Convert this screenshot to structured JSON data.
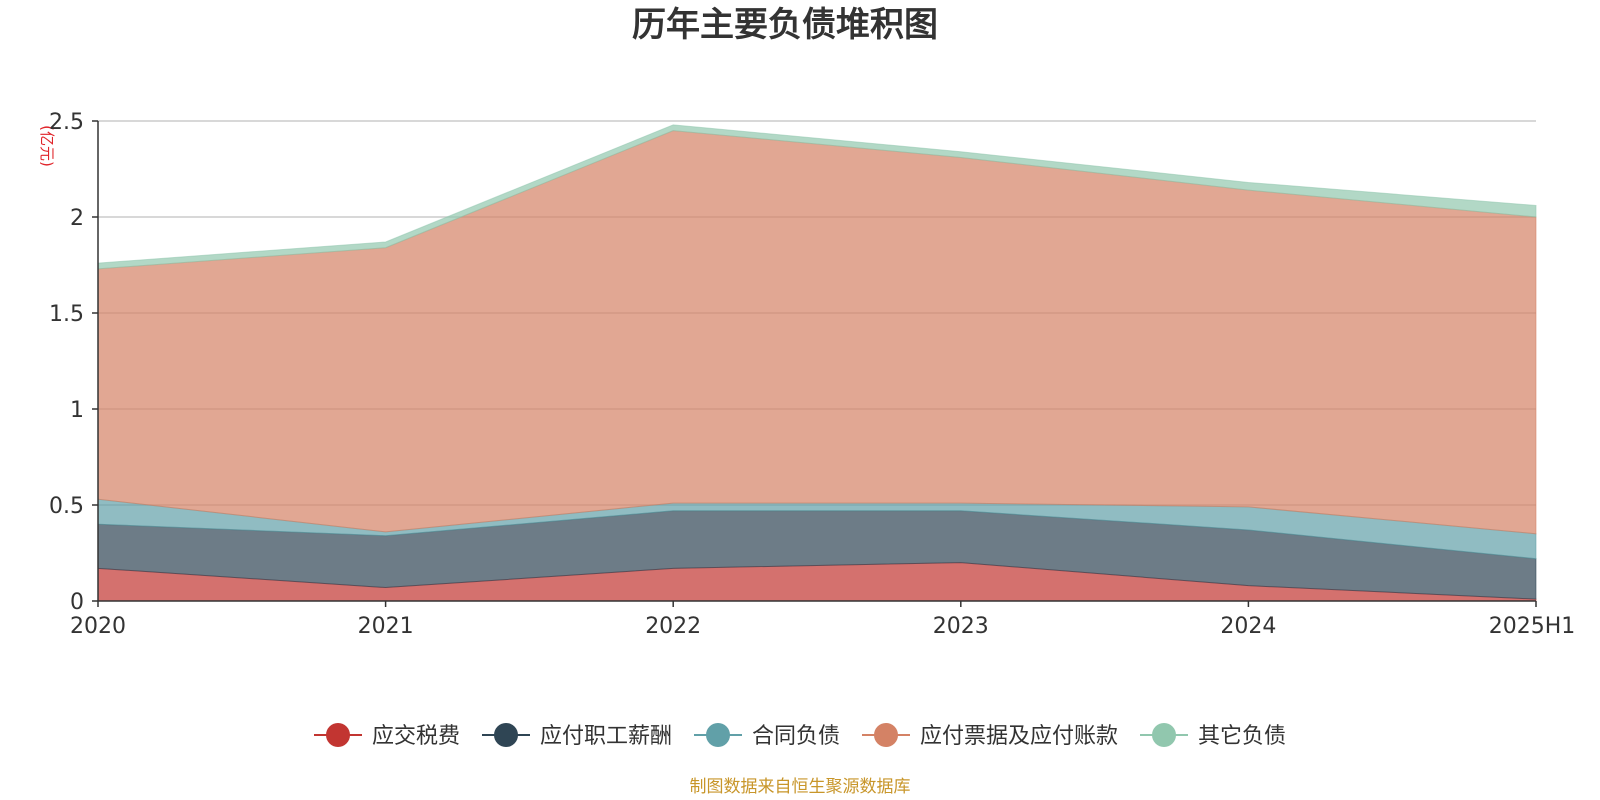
{
  "chart_data": {
    "type": "area",
    "stacked": true,
    "title": "历年主要负债堆积图",
    "unit_label": "(亿元)",
    "source": "制图数据来自恒生聚源数据库",
    "categories": [
      "2020",
      "2021",
      "2022",
      "2023",
      "2024",
      "2025H1"
    ],
    "ylim": [
      0,
      2.5
    ],
    "yticks": [
      "0",
      "0.5",
      "1",
      "1.5",
      "2",
      "2.5"
    ],
    "grid": true,
    "legend_position": "bottom",
    "series": [
      {
        "name": "应交税费",
        "color": "#c23531",
        "values": [
          0.17,
          0.07,
          0.17,
          0.2,
          0.08,
          0.01
        ]
      },
      {
        "name": "应付职工薪酬",
        "color": "#2f4554",
        "values": [
          0.23,
          0.27,
          0.3,
          0.27,
          0.29,
          0.21
        ]
      },
      {
        "name": "合同负债",
        "color": "#61a0a8",
        "values": [
          0.13,
          0.02,
          0.04,
          0.04,
          0.12,
          0.13
        ]
      },
      {
        "name": "应付票据及应付账款",
        "color": "#d48265",
        "values": [
          1.2,
          1.48,
          1.94,
          1.8,
          1.65,
          1.65
        ]
      },
      {
        "name": "其它负债",
        "color": "#91c7ae",
        "values": [
          0.03,
          0.03,
          0.03,
          0.03,
          0.04,
          0.06
        ]
      }
    ]
  }
}
